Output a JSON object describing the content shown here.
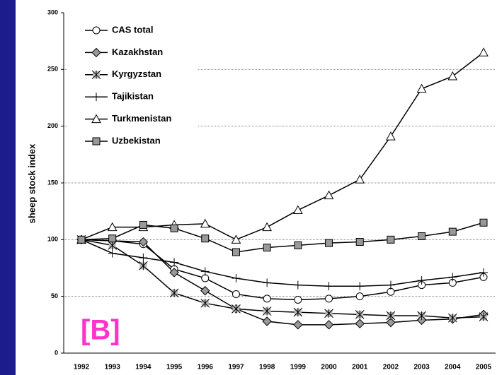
{
  "chart_data": {
    "type": "line",
    "y_label": "sheep stock index",
    "annotation": "[B]",
    "categories": [
      "1992",
      "1993",
      "1994",
      "1995",
      "1996",
      "1997",
      "1998",
      "1999",
      "2000",
      "2001",
      "2002",
      "2003",
      "2004",
      "2005"
    ],
    "ylim": [
      0,
      300
    ],
    "yticks": [
      0,
      50,
      100,
      150,
      200,
      250,
      300
    ],
    "grid": true,
    "legend": "upper left",
    "series": [
      {
        "name": "CAS total",
        "color": "#000000",
        "marker": "circle",
        "values": [
          100,
          99,
          96,
          74,
          66,
          52,
          48,
          47,
          48,
          50,
          54,
          60,
          62,
          67
        ]
      },
      {
        "name": "Kazakhstan",
        "color": "#000000",
        "marker": "diamond",
        "values": [
          100,
          99,
          98,
          71,
          55,
          39,
          28,
          25,
          25,
          26,
          27,
          29,
          30,
          34
        ]
      },
      {
        "name": "Kyrgyzstan",
        "color": "#000000",
        "marker": "starsquare",
        "values": [
          100,
          95,
          77,
          53,
          44,
          39,
          37,
          36,
          35,
          34,
          33,
          33,
          31,
          32
        ]
      },
      {
        "name": "Tajikistan",
        "color": "#000000",
        "marker": "plus",
        "values": [
          100,
          88,
          84,
          80,
          72,
          66,
          62,
          60,
          59,
          59,
          60,
          64,
          67,
          71
        ]
      },
      {
        "name": "Turkmenistan",
        "color": "#000000",
        "marker": "triangle",
        "values": [
          100,
          111,
          111,
          113,
          114,
          100,
          111,
          126,
          139,
          153,
          191,
          233,
          244,
          265
        ]
      },
      {
        "name": "Uzbekistan",
        "color": "#000000",
        "marker": "square",
        "values": [
          100,
          101,
          113,
          110,
          101,
          89,
          93,
          95,
          97,
          98,
          100,
          103,
          107,
          115
        ]
      }
    ]
  }
}
